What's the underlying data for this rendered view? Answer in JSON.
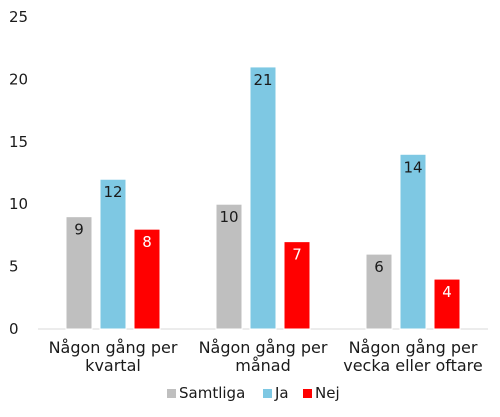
{
  "chart_data": {
    "type": "bar",
    "categories": [
      [
        "Någon gång per",
        "kvartal"
      ],
      [
        "Någon gång per",
        "månad"
      ],
      [
        "Någon gång per",
        "vecka eller oftare"
      ]
    ],
    "series": [
      {
        "name": "Samtliga",
        "color": "#bfbfbf",
        "label_color": "#1a1a1a",
        "values": [
          9,
          10,
          6
        ]
      },
      {
        "name": "Ja",
        "color": "#7ec8e3",
        "label_color": "#1a1a1a",
        "values": [
          12,
          21,
          14
        ]
      },
      {
        "name": "Nej",
        "color": "#ff0000",
        "label_color": "#ffffff",
        "values": [
          8,
          7,
          4
        ]
      }
    ],
    "ylim": [
      0,
      25
    ],
    "yticks": [
      0,
      5,
      10,
      15,
      20,
      25
    ],
    "grid": false,
    "legend_position": "bottom",
    "title": "",
    "xlabel": "",
    "ylabel": ""
  }
}
